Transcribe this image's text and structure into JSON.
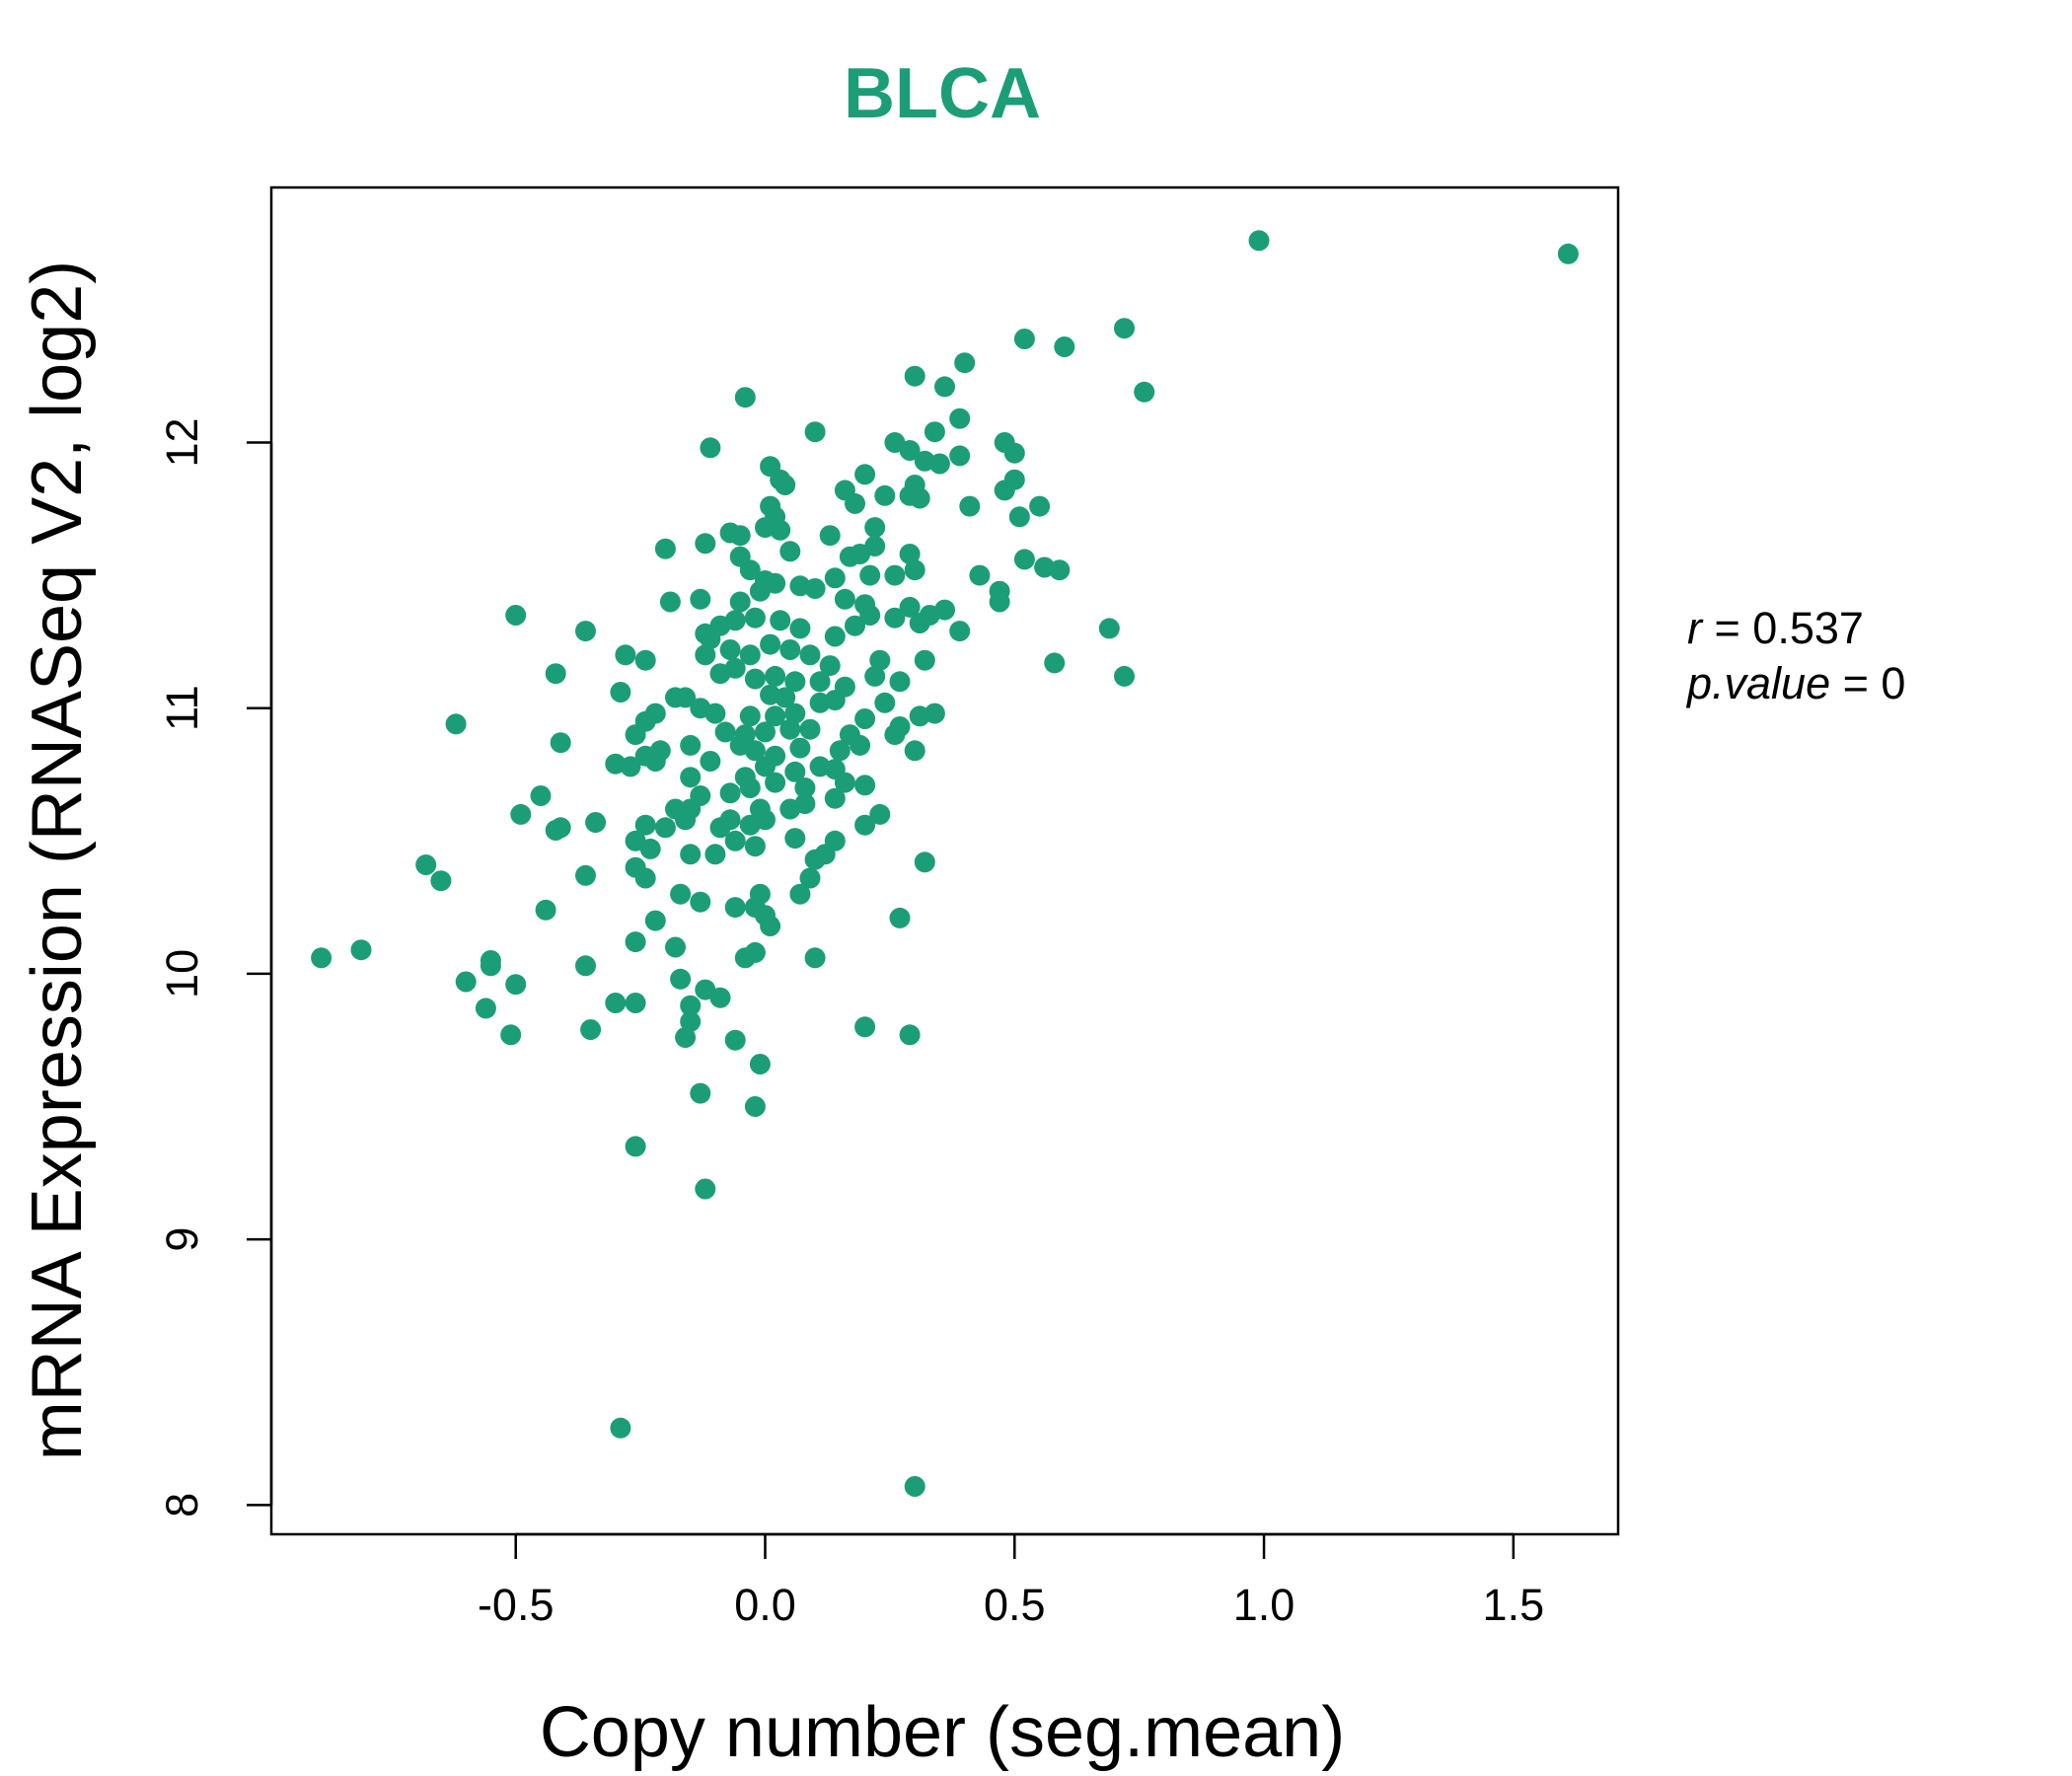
{
  "colors": {
    "accent": "#1b9e77",
    "axis": "#000000",
    "text": "#000000"
  },
  "chart_data": {
    "type": "scatter",
    "title": "BLCA",
    "xlabel": "Copy number (seg.mean)",
    "ylabel": "mRNA Expression (RNASeq V2, log2)",
    "xlim": [
      -0.99,
      1.71
    ],
    "ylim": [
      7.89,
      12.96
    ],
    "x_ticks": [
      -0.5,
      0.0,
      0.5,
      1.0,
      1.5
    ],
    "x_tick_labels": [
      "-0.5",
      "0.0",
      "0.5",
      "1.0",
      "1.5"
    ],
    "y_ticks": [
      8,
      9,
      10,
      11,
      12
    ],
    "y_tick_labels": [
      "8",
      "9",
      "10",
      "11",
      "12"
    ],
    "grid": false,
    "stats": {
      "r_label": "r",
      "r_value": "0.537",
      "p_label": "p.value",
      "p_value": "0"
    },
    "series": [
      {
        "points": [
          [
            0.99,
            12.76
          ],
          [
            1.61,
            12.71
          ],
          [
            0.72,
            12.43
          ],
          [
            0.52,
            12.39
          ],
          [
            0.6,
            12.36
          ],
          [
            0.76,
            12.19
          ],
          [
            -0.04,
            12.17
          ],
          [
            0.4,
            12.3
          ],
          [
            0.3,
            12.25
          ],
          [
            0.36,
            12.21
          ],
          [
            0.39,
            12.09
          ],
          [
            0.1,
            12.04
          ],
          [
            0.34,
            12.04
          ],
          [
            0.26,
            12.0
          ],
          [
            0.48,
            12.0
          ],
          [
            0.5,
            11.96
          ],
          [
            0.29,
            11.97
          ],
          [
            0.39,
            11.95
          ],
          [
            0.32,
            11.93
          ],
          [
            0.35,
            11.92
          ],
          [
            -0.11,
            11.98
          ],
          [
            0.01,
            11.91
          ],
          [
            0.03,
            11.86
          ],
          [
            0.04,
            11.84
          ],
          [
            0.2,
            11.88
          ],
          [
            0.16,
            11.82
          ],
          [
            0.3,
            11.84
          ],
          [
            0.5,
            11.86
          ],
          [
            0.48,
            11.82
          ],
          [
            0.29,
            11.8
          ],
          [
            0.31,
            11.79
          ],
          [
            0.24,
            11.8
          ],
          [
            0.41,
            11.76
          ],
          [
            0.55,
            11.76
          ],
          [
            0.51,
            11.72
          ],
          [
            0.18,
            11.77
          ],
          [
            0.01,
            11.76
          ],
          [
            0.02,
            11.72
          ],
          [
            0.0,
            11.68
          ],
          [
            0.03,
            11.67
          ],
          [
            -0.07,
            11.66
          ],
          [
            -0.05,
            11.65
          ],
          [
            0.13,
            11.65
          ],
          [
            0.22,
            11.68
          ],
          [
            0.22,
            11.61
          ],
          [
            0.29,
            11.58
          ],
          [
            0.19,
            11.58
          ],
          [
            0.17,
            11.57
          ],
          [
            0.05,
            11.59
          ],
          [
            -0.2,
            11.6
          ],
          [
            -0.12,
            11.62
          ],
          [
            0.52,
            11.56
          ],
          [
            0.56,
            11.53
          ],
          [
            0.59,
            11.52
          ],
          [
            0.43,
            11.5
          ],
          [
            0.3,
            11.52
          ],
          [
            0.26,
            11.5
          ],
          [
            0.21,
            11.5
          ],
          [
            0.14,
            11.49
          ],
          [
            -0.05,
            11.57
          ],
          [
            -0.03,
            11.52
          ],
          [
            0.0,
            11.48
          ],
          [
            0.02,
            11.47
          ],
          [
            0.07,
            11.46
          ],
          [
            -0.01,
            11.44
          ],
          [
            0.47,
            11.44
          ],
          [
            0.47,
            11.4
          ],
          [
            0.36,
            11.37
          ],
          [
            0.33,
            11.35
          ],
          [
            0.29,
            11.38
          ],
          [
            0.2,
            11.39
          ],
          [
            0.16,
            11.41
          ],
          [
            0.1,
            11.45
          ],
          [
            -0.13,
            11.41
          ],
          [
            -0.19,
            11.4
          ],
          [
            -0.05,
            11.4
          ],
          [
            -0.5,
            11.35
          ],
          [
            -0.36,
            11.29
          ],
          [
            0.69,
            11.3
          ],
          [
            0.39,
            11.29
          ],
          [
            0.31,
            11.32
          ],
          [
            0.26,
            11.34
          ],
          [
            0.21,
            11.35
          ],
          [
            0.18,
            11.31
          ],
          [
            0.14,
            11.27
          ],
          [
            0.07,
            11.3
          ],
          [
            0.03,
            11.33
          ],
          [
            -0.02,
            11.34
          ],
          [
            -0.06,
            11.33
          ],
          [
            -0.09,
            11.31
          ],
          [
            -0.12,
            11.28
          ],
          [
            -0.11,
            11.26
          ],
          [
            -0.28,
            11.2
          ],
          [
            -0.24,
            11.18
          ],
          [
            0.58,
            11.17
          ],
          [
            0.72,
            11.12
          ],
          [
            0.32,
            11.18
          ],
          [
            0.23,
            11.18
          ],
          [
            0.13,
            11.16
          ],
          [
            0.09,
            11.2
          ],
          [
            0.05,
            11.22
          ],
          [
            0.01,
            11.24
          ],
          [
            -0.03,
            11.2
          ],
          [
            -0.07,
            11.22
          ],
          [
            -0.12,
            11.2
          ],
          [
            -0.42,
            11.13
          ],
          [
            0.27,
            11.1
          ],
          [
            0.22,
            11.12
          ],
          [
            0.16,
            11.08
          ],
          [
            0.11,
            11.1
          ],
          [
            0.06,
            11.1
          ],
          [
            0.02,
            11.12
          ],
          [
            -0.02,
            11.11
          ],
          [
            -0.06,
            11.15
          ],
          [
            -0.09,
            11.13
          ],
          [
            -0.29,
            11.06
          ],
          [
            -0.16,
            11.04
          ],
          [
            -0.18,
            11.04
          ],
          [
            0.01,
            11.05
          ],
          [
            0.04,
            11.04
          ],
          [
            0.11,
            11.02
          ],
          [
            0.14,
            11.03
          ],
          [
            0.24,
            11.02
          ],
          [
            0.34,
            10.98
          ],
          [
            0.31,
            10.97
          ],
          [
            0.2,
            10.96
          ],
          [
            0.06,
            10.98
          ],
          [
            0.02,
            10.97
          ],
          [
            -0.03,
            10.97
          ],
          [
            -0.1,
            10.98
          ],
          [
            -0.13,
            11.0
          ],
          [
            -0.22,
            10.98
          ],
          [
            -0.24,
            10.95
          ],
          [
            -0.62,
            10.94
          ],
          [
            0.27,
            10.93
          ],
          [
            0.26,
            10.9
          ],
          [
            0.17,
            10.9
          ],
          [
            0.09,
            10.92
          ],
          [
            0.05,
            10.92
          ],
          [
            0.0,
            10.91
          ],
          [
            -0.04,
            10.9
          ],
          [
            -0.08,
            10.91
          ],
          [
            -0.26,
            10.9
          ],
          [
            -0.41,
            10.87
          ],
          [
            -0.15,
            10.86
          ],
          [
            -0.21,
            10.84
          ],
          [
            -0.24,
            10.82
          ],
          [
            -0.22,
            10.8
          ],
          [
            0.3,
            10.84
          ],
          [
            0.19,
            10.86
          ],
          [
            0.15,
            10.84
          ],
          [
            0.07,
            10.85
          ],
          [
            0.02,
            10.82
          ],
          [
            -0.02,
            10.84
          ],
          [
            -0.05,
            10.86
          ],
          [
            -0.11,
            10.8
          ],
          [
            -0.27,
            10.78
          ],
          [
            -0.3,
            10.79
          ],
          [
            0.11,
            10.78
          ],
          [
            0.14,
            10.77
          ],
          [
            0.06,
            10.76
          ],
          [
            0.0,
            10.78
          ],
          [
            -0.04,
            10.74
          ],
          [
            -0.15,
            10.74
          ],
          [
            0.2,
            10.71
          ],
          [
            0.16,
            10.72
          ],
          [
            0.08,
            10.7
          ],
          [
            0.02,
            10.72
          ],
          [
            -0.03,
            10.7
          ],
          [
            -0.07,
            10.68
          ],
          [
            -0.13,
            10.67
          ],
          [
            -0.45,
            10.67
          ],
          [
            0.14,
            10.66
          ],
          [
            0.08,
            10.64
          ],
          [
            0.05,
            10.62
          ],
          [
            -0.01,
            10.62
          ],
          [
            -0.15,
            10.62
          ],
          [
            -0.18,
            10.62
          ],
          [
            -0.49,
            10.6
          ],
          [
            0.23,
            10.6
          ],
          [
            0.2,
            10.56
          ],
          [
            0.0,
            10.58
          ],
          [
            -0.03,
            10.56
          ],
          [
            -0.07,
            10.58
          ],
          [
            -0.09,
            10.55
          ],
          [
            -0.16,
            10.58
          ],
          [
            -0.2,
            10.55
          ],
          [
            -0.24,
            10.56
          ],
          [
            -0.34,
            10.57
          ],
          [
            -0.41,
            10.55
          ],
          [
            -0.42,
            10.54
          ],
          [
            0.14,
            10.5
          ],
          [
            0.06,
            10.51
          ],
          [
            -0.02,
            10.48
          ],
          [
            -0.06,
            10.5
          ],
          [
            -0.1,
            10.45
          ],
          [
            -0.15,
            10.45
          ],
          [
            -0.23,
            10.47
          ],
          [
            -0.26,
            10.5
          ],
          [
            -0.26,
            10.4
          ],
          [
            0.12,
            10.45
          ],
          [
            0.1,
            10.43
          ],
          [
            0.32,
            10.42
          ],
          [
            -0.68,
            10.41
          ],
          [
            -0.65,
            10.35
          ],
          [
            -0.36,
            10.37
          ],
          [
            -0.24,
            10.36
          ],
          [
            -0.17,
            10.3
          ],
          [
            -0.13,
            10.27
          ],
          [
            -0.06,
            10.25
          ],
          [
            -0.01,
            10.3
          ],
          [
            0.09,
            10.36
          ],
          [
            0.07,
            10.3
          ],
          [
            -0.02,
            10.25
          ],
          [
            0.0,
            10.22
          ],
          [
            0.01,
            10.18
          ],
          [
            -0.44,
            10.24
          ],
          [
            -0.22,
            10.2
          ],
          [
            0.27,
            10.21
          ],
          [
            -0.26,
            10.12
          ],
          [
            -0.18,
            10.1
          ],
          [
            -0.02,
            10.08
          ],
          [
            -0.04,
            10.06
          ],
          [
            0.1,
            10.06
          ],
          [
            -0.89,
            10.06
          ],
          [
            -0.81,
            10.09
          ],
          [
            -0.55,
            10.05
          ],
          [
            -0.55,
            10.03
          ],
          [
            -0.36,
            10.03
          ],
          [
            -0.6,
            9.97
          ],
          [
            -0.5,
            9.96
          ],
          [
            -0.17,
            9.98
          ],
          [
            -0.12,
            9.94
          ],
          [
            -0.09,
            9.91
          ],
          [
            -0.15,
            9.88
          ],
          [
            -0.3,
            9.89
          ],
          [
            -0.26,
            9.89
          ],
          [
            -0.56,
            9.87
          ],
          [
            -0.15,
            9.82
          ],
          [
            -0.35,
            9.79
          ],
          [
            -0.51,
            9.77
          ],
          [
            -0.16,
            9.76
          ],
          [
            -0.06,
            9.75
          ],
          [
            0.2,
            9.8
          ],
          [
            0.29,
            9.77
          ],
          [
            -0.01,
            9.66
          ],
          [
            -0.13,
            9.55
          ],
          [
            -0.02,
            9.5
          ],
          [
            -0.26,
            9.35
          ],
          [
            -0.12,
            9.19
          ],
          [
            -0.29,
            8.29
          ],
          [
            0.3,
            8.07
          ]
        ]
      }
    ]
  }
}
